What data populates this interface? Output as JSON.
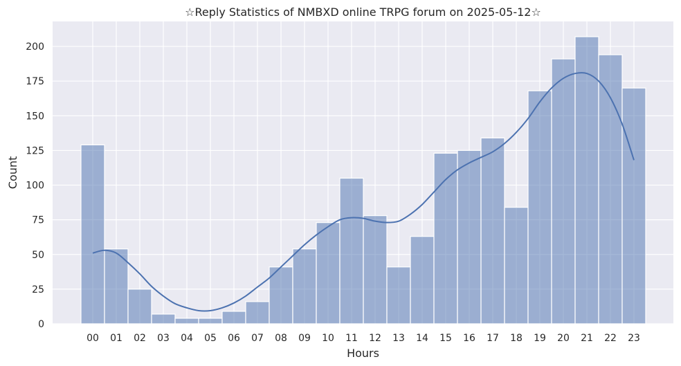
{
  "chart_data": {
    "type": "bar",
    "title": "☆Reply Statistics of NMBXD online TRPG forum on 2025-05-12☆",
    "xlabel": "Hours",
    "ylabel": "Count",
    "categories": [
      "00",
      "01",
      "02",
      "03",
      "04",
      "05",
      "06",
      "07",
      "08",
      "09",
      "10",
      "11",
      "12",
      "13",
      "14",
      "15",
      "16",
      "17",
      "18",
      "19",
      "20",
      "21",
      "22",
      "23"
    ],
    "values": [
      129,
      54,
      25,
      7,
      4,
      4,
      9,
      16,
      41,
      54,
      73,
      105,
      78,
      41,
      63,
      123,
      125,
      134,
      84,
      168,
      191,
      207,
      194,
      170
    ],
    "kde": {
      "x": [
        0,
        0.5,
        1,
        1.5,
        2,
        2.5,
        3,
        3.5,
        4,
        4.5,
        5,
        5.5,
        6,
        6.5,
        7,
        7.5,
        8,
        8.5,
        9,
        9.5,
        10,
        10.5,
        11,
        11.5,
        12,
        12.5,
        13,
        13.5,
        14,
        14.5,
        15,
        15.5,
        16,
        16.5,
        17,
        17.5,
        18,
        18.5,
        19,
        19.5,
        20,
        20.5,
        21,
        21.5,
        22,
        22.5,
        23
      ],
      "y": [
        51,
        53,
        51,
        44,
        36,
        27,
        20,
        14.5,
        11.5,
        9.5,
        9.5,
        11.5,
        15,
        20,
        26.5,
        33,
        41,
        49,
        57,
        64,
        70,
        75,
        76.5,
        76,
        74,
        73,
        74,
        79,
        86,
        95,
        104,
        111,
        116,
        120,
        124,
        130,
        138,
        148,
        160,
        170,
        177,
        180.5,
        180.5,
        175,
        163,
        144,
        118
      ]
    },
    "ylim": [
      0,
      218
    ],
    "yticks": [
      0,
      25,
      50,
      75,
      100,
      125,
      150,
      175,
      200
    ],
    "grid": true,
    "colors": {
      "background": "#eaeaf2",
      "grid": "#ffffff",
      "bar_fill": "#4c72b0",
      "bar_opacity": 0.5,
      "bar_edge": "#ffffff",
      "kde_line": "#4c72b0"
    }
  }
}
